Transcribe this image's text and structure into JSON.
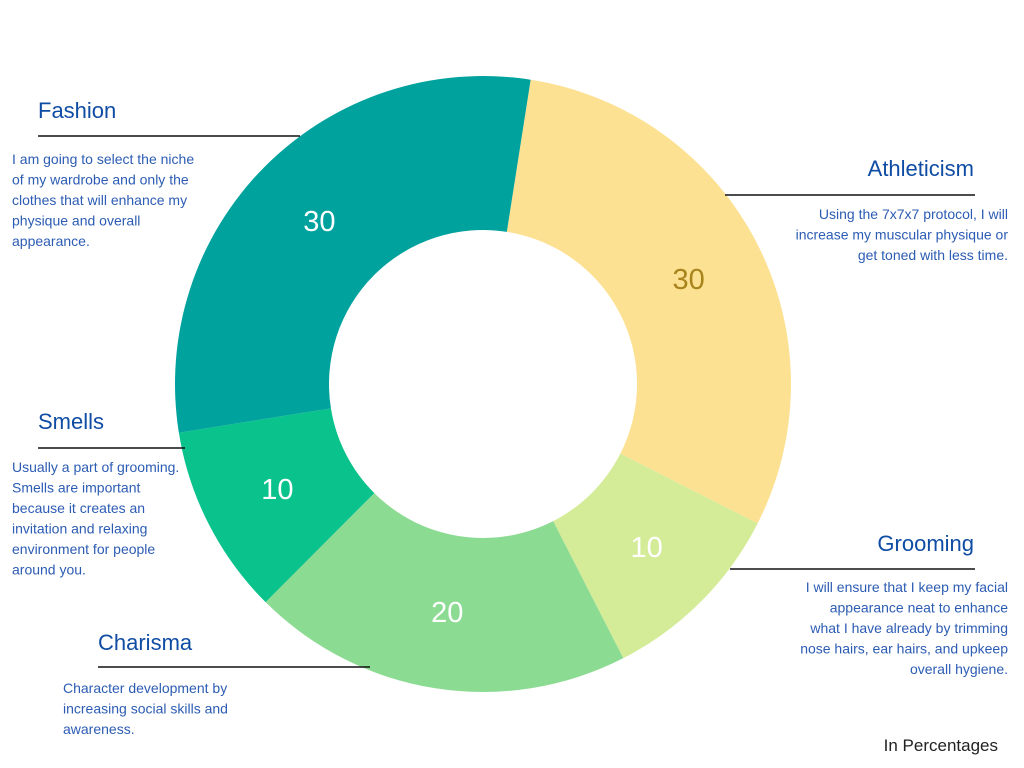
{
  "chart_data": {
    "type": "donut",
    "categories": [
      "Athleticism",
      "Grooming",
      "Charisma",
      "Smells",
      "Fashion"
    ],
    "values": [
      30,
      10,
      20,
      10,
      30
    ],
    "colors": [
      "#fde193",
      "#d4ec98",
      "#8bdb93",
      "#09c28c",
      "#00a29e"
    ],
    "label_colors": [
      "#a8841c",
      "#ffffff",
      "#ffffff",
      "#ffffff",
      "#ffffff"
    ],
    "descriptions": [
      [
        "Using the 7x7x7 protocol, I will",
        "increase my muscular physique or",
        "get toned with less time."
      ],
      [
        "I will ensure that I keep my facial",
        "appearance neat to enhance",
        "what I have already by trimming",
        "nose hairs, ear hairs, and upkeep",
        "overall hygiene."
      ],
      [
        "Character development by",
        "increasing social skills and",
        "awareness."
      ],
      [
        "Usually a part of grooming.",
        "Smells are important",
        "because it creates an",
        "invitation and relaxing",
        "environment for people",
        "around you."
      ],
      [
        "I am going to select the niche",
        "of my wardrobe and only the",
        "clothes that will enhance my",
        "physique and overall",
        "appearance."
      ]
    ],
    "note": "In Percentages"
  }
}
